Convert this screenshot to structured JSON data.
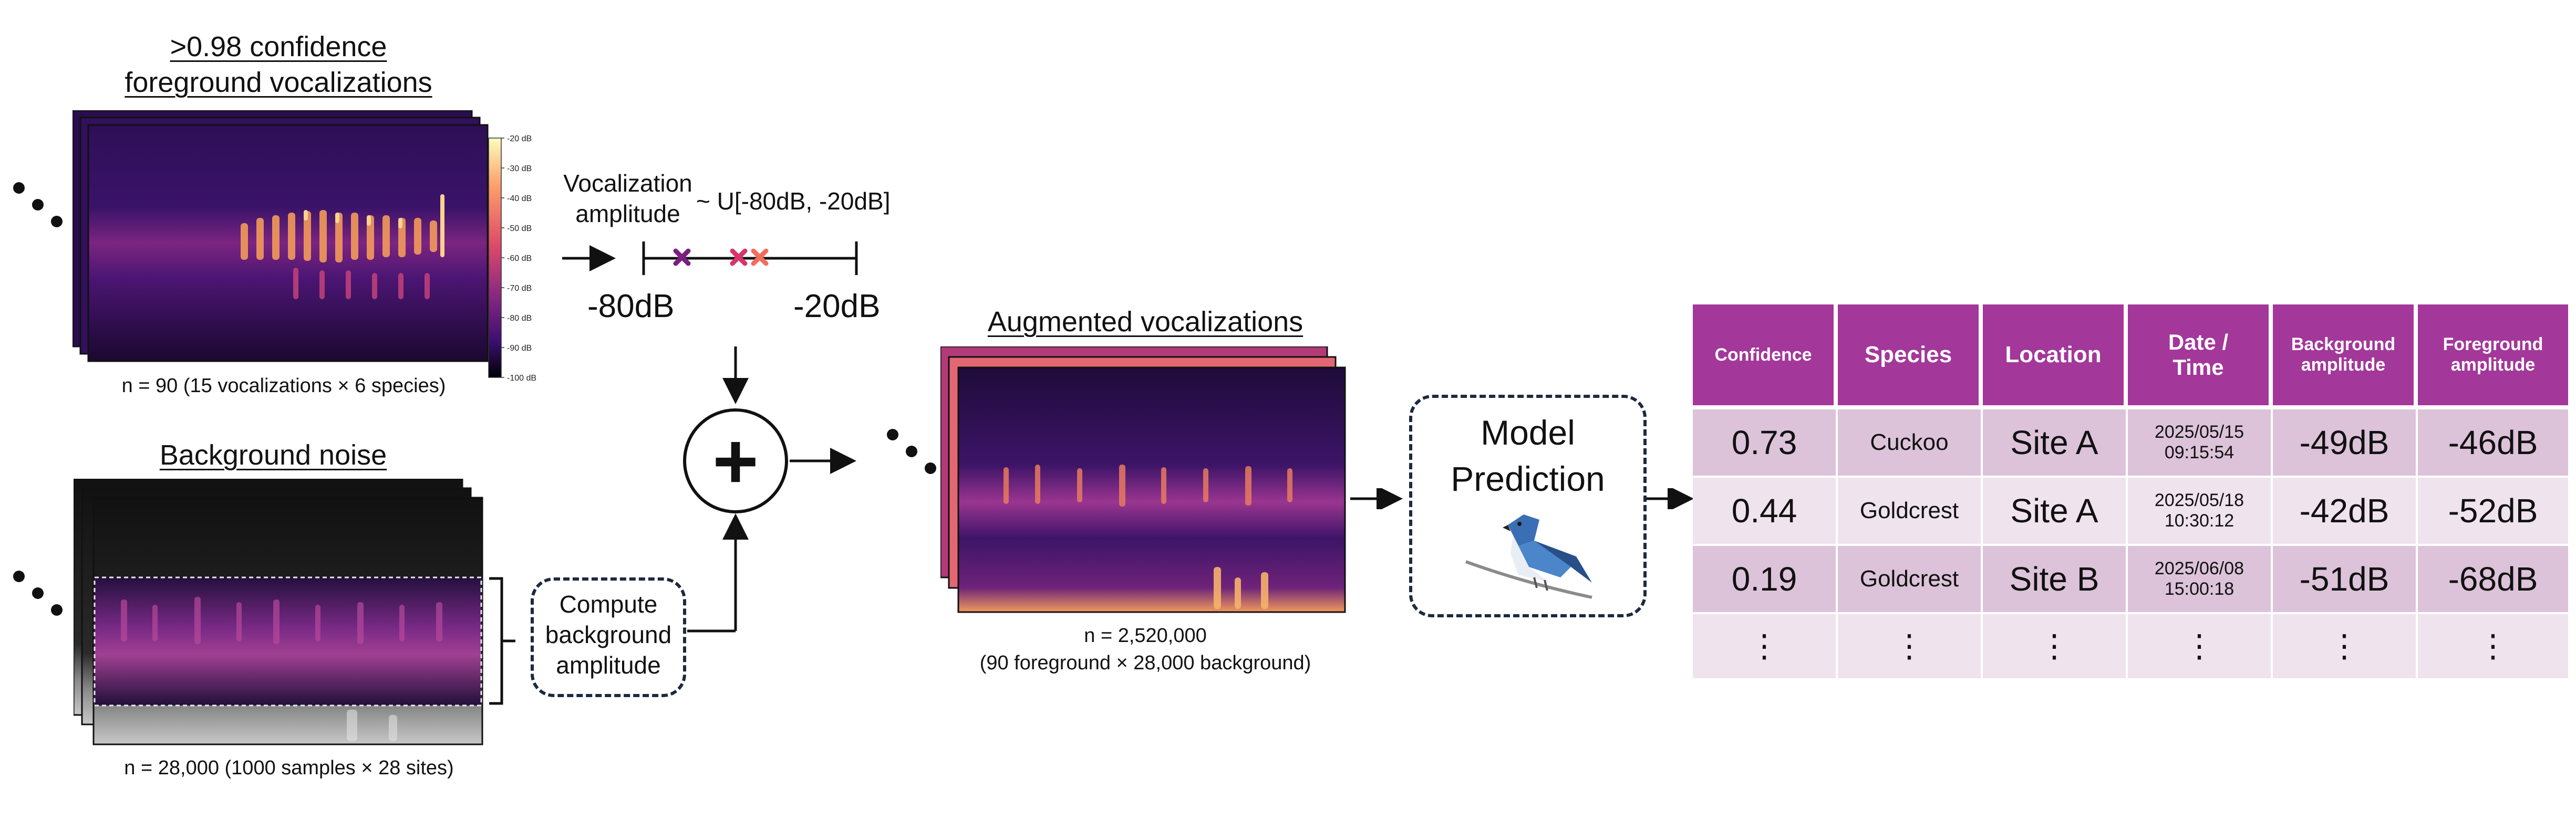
{
  "foreground": {
    "title_line1": ">0.98 confidence",
    "title_line2": "foreground vocalizations",
    "caption": "n = 90 (15 vocalizations × 6 species)",
    "colorbar_labels": [
      "-20 dB",
      "-30 dB",
      "-40 dB",
      "-50 dB",
      "-60 dB",
      "-70 dB",
      "-80 dB",
      "-90 dB",
      "-100 dB"
    ]
  },
  "amplitude": {
    "label_line1": "Vocalization",
    "label_line2": "amplitude",
    "distribution": "~ U[-80dB, -20dB]",
    "min_label": "-80dB",
    "max_label": "-20dB",
    "marker_colors": [
      "#7a1f7f",
      "#d9356a",
      "#f26d5b"
    ]
  },
  "background": {
    "title": "Background noise",
    "caption": "n = 28,000 (1000 samples × 28 sites)",
    "compute_line1": "Compute",
    "compute_line2": "background",
    "compute_line3": "amplitude"
  },
  "combine": {
    "symbol": "+"
  },
  "augmented": {
    "title": "Augmented vocalizations",
    "caption_line1": "n = 2,520,000",
    "caption_line2": "(90 foreground × 28,000 background)"
  },
  "model": {
    "line1": "Model",
    "line2": "Prediction",
    "icon": "bird-icon"
  },
  "table": {
    "headers": [
      "Confidence",
      "Species",
      "Location",
      "Date / Time",
      "Background amplitude",
      "Foreground amplitude"
    ],
    "rows": [
      [
        "0.73",
        "Cuckoo",
        "Site A",
        "2025/05/15 09:15:54",
        "-49dB",
        "-46dB"
      ],
      [
        "0.44",
        "Goldcrest",
        "Site A",
        "2025/05/18 10:30:12",
        "-42dB",
        "-52dB"
      ],
      [
        "0.19",
        "Goldcrest",
        "Site B",
        "2025/06/08 15:00:18",
        "-51dB",
        "-68dB"
      ],
      [
        "⋮",
        "⋮",
        "⋮",
        "⋮",
        "⋮",
        "⋮"
      ]
    ],
    "colors": {
      "header": "#a3379a",
      "row_dark": "#dcc3d9",
      "row_light": "#efe3ee"
    }
  }
}
